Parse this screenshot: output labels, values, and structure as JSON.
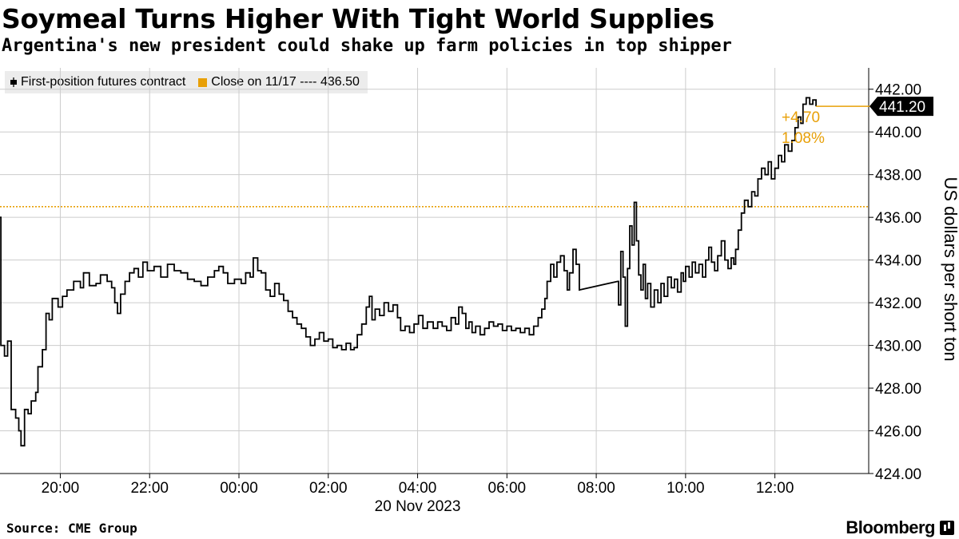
{
  "header": {
    "title": "Soymeal Turns Higher With Tight World Supplies",
    "subtitle": "Argentina's new president could shake up farm policies in top shipper"
  },
  "legend": {
    "series_label": "First-position futures contract",
    "close_label": "Close on 11/17 ---- 436.50"
  },
  "footer": {
    "source": "Source: CME Group",
    "brand": "Bloomberg"
  },
  "colors": {
    "series": "#000000",
    "close": "#e8a008",
    "gridline": "#cccccc",
    "axis": "#000000",
    "legend_bg": "#ececec"
  },
  "chart_data": {
    "type": "line",
    "ylabel": "US dollars per short ton",
    "date_label": "20 Nov 2023",
    "ylim": [
      424,
      443
    ],
    "xlim_hours": [
      -5.35,
      14.1
    ],
    "y_ticks": [
      "424.00",
      "426.00",
      "428.00",
      "430.00",
      "432.00",
      "434.00",
      "436.00",
      "438.00",
      "440.00",
      "442.00"
    ],
    "x_ticks": [
      {
        "label": "20:00",
        "t": -4
      },
      {
        "label": "22:00",
        "t": -2
      },
      {
        "label": "00:00",
        "t": 0
      },
      {
        "label": "02:00",
        "t": 2
      },
      {
        "label": "04:00",
        "t": 4
      },
      {
        "label": "06:00",
        "t": 6
      },
      {
        "label": "08:00",
        "t": 8
      },
      {
        "label": "10:00",
        "t": 10
      },
      {
        "label": "12:00",
        "t": 12
      }
    ],
    "reference_line": {
      "name": "Close on 11/17",
      "value": 436.5
    },
    "last_value": "441.20",
    "change_abs": "+4.70",
    "change_pct": "1.08%",
    "grid": true,
    "legend_position": "top-left",
    "series": [
      {
        "points": [
          [
            -5.35,
            436.0
          ],
          [
            -5.33,
            430.0
          ],
          [
            -5.25,
            429.5
          ],
          [
            -5.18,
            430.2
          ],
          [
            -5.1,
            427.0
          ],
          [
            -5.0,
            426.6
          ],
          [
            -4.93,
            426.0
          ],
          [
            -4.88,
            425.3
          ],
          [
            -4.8,
            427.0
          ],
          [
            -4.72,
            426.8
          ],
          [
            -4.65,
            427.4
          ],
          [
            -4.55,
            427.8
          ],
          [
            -4.5,
            429.0
          ],
          [
            -4.4,
            429.8
          ],
          [
            -4.32,
            431.5
          ],
          [
            -4.25,
            431.2
          ],
          [
            -4.18,
            432.2
          ],
          [
            -4.05,
            431.8
          ],
          [
            -3.95,
            432.3
          ],
          [
            -3.85,
            432.6
          ],
          [
            -3.7,
            433.0
          ],
          [
            -3.55,
            432.7
          ],
          [
            -3.48,
            433.4
          ],
          [
            -3.35,
            432.8
          ],
          [
            -3.2,
            432.9
          ],
          [
            -3.1,
            433.3
          ],
          [
            -2.95,
            433.0
          ],
          [
            -2.85,
            432.7
          ],
          [
            -2.78,
            432.0
          ],
          [
            -2.72,
            431.5
          ],
          [
            -2.65,
            432.4
          ],
          [
            -2.55,
            433.0
          ],
          [
            -2.45,
            433.4
          ],
          [
            -2.35,
            433.6
          ],
          [
            -2.25,
            433.2
          ],
          [
            -2.15,
            433.9
          ],
          [
            -2.05,
            433.5
          ],
          [
            -1.9,
            433.7
          ],
          [
            -1.75,
            433.2
          ],
          [
            -1.6,
            433.8
          ],
          [
            -1.45,
            433.5
          ],
          [
            -1.3,
            433.4
          ],
          [
            -1.15,
            433.1
          ],
          [
            -1.0,
            433.0
          ],
          [
            -0.85,
            432.8
          ],
          [
            -0.7,
            433.2
          ],
          [
            -0.55,
            433.5
          ],
          [
            -0.45,
            433.7
          ],
          [
            -0.35,
            433.4
          ],
          [
            -0.25,
            432.9
          ],
          [
            -0.1,
            433.1
          ],
          [
            0.05,
            432.9
          ],
          [
            0.15,
            433.4
          ],
          [
            0.25,
            433.2
          ],
          [
            0.32,
            434.1
          ],
          [
            0.42,
            433.5
          ],
          [
            0.5,
            433.4
          ],
          [
            0.6,
            432.6
          ],
          [
            0.7,
            432.3
          ],
          [
            0.8,
            432.9
          ],
          [
            0.9,
            432.4
          ],
          [
            1.0,
            432.1
          ],
          [
            1.1,
            431.6
          ],
          [
            1.2,
            431.3
          ],
          [
            1.3,
            431.0
          ],
          [
            1.4,
            430.8
          ],
          [
            1.5,
            430.4
          ],
          [
            1.6,
            430.0
          ],
          [
            1.7,
            430.3
          ],
          [
            1.8,
            430.6
          ],
          [
            1.9,
            430.2
          ],
          [
            2.0,
            430.3
          ],
          [
            2.1,
            429.9
          ],
          [
            2.2,
            430.0
          ],
          [
            2.3,
            429.8
          ],
          [
            2.4,
            430.1
          ],
          [
            2.5,
            429.8
          ],
          [
            2.58,
            429.9
          ],
          [
            2.65,
            430.5
          ],
          [
            2.75,
            431.0
          ],
          [
            2.85,
            431.8
          ],
          [
            2.92,
            432.3
          ],
          [
            2.98,
            431.2
          ],
          [
            3.05,
            431.7
          ],
          [
            3.15,
            431.4
          ],
          [
            3.25,
            432.0
          ],
          [
            3.35,
            431.6
          ],
          [
            3.45,
            431.9
          ],
          [
            3.55,
            431.3
          ],
          [
            3.62,
            430.7
          ],
          [
            3.72,
            430.9
          ],
          [
            3.82,
            430.6
          ],
          [
            3.92,
            431.0
          ],
          [
            4.02,
            431.4
          ],
          [
            4.12,
            430.8
          ],
          [
            4.22,
            431.1
          ],
          [
            4.35,
            430.8
          ],
          [
            4.45,
            431.1
          ],
          [
            4.55,
            430.9
          ],
          [
            4.65,
            430.7
          ],
          [
            4.75,
            431.3
          ],
          [
            4.85,
            431.0
          ],
          [
            4.92,
            431.8
          ],
          [
            5.0,
            431.5
          ],
          [
            5.08,
            430.8
          ],
          [
            5.15,
            431.1
          ],
          [
            5.22,
            430.6
          ],
          [
            5.3,
            430.9
          ],
          [
            5.4,
            430.5
          ],
          [
            5.5,
            430.8
          ],
          [
            5.6,
            431.1
          ],
          [
            5.7,
            430.9
          ],
          [
            5.8,
            431.0
          ],
          [
            5.9,
            430.7
          ],
          [
            6.0,
            430.9
          ],
          [
            6.1,
            430.7
          ],
          [
            6.2,
            430.8
          ],
          [
            6.3,
            430.6
          ],
          [
            6.4,
            430.8
          ],
          [
            6.5,
            430.5
          ],
          [
            6.6,
            430.9
          ],
          [
            6.7,
            431.3
          ],
          [
            6.78,
            431.7
          ],
          [
            6.85,
            432.2
          ],
          [
            6.9,
            433.0
          ],
          [
            6.98,
            433.8
          ],
          [
            7.05,
            433.2
          ],
          [
            7.12,
            433.9
          ],
          [
            7.2,
            434.2
          ],
          [
            7.28,
            433.5
          ],
          [
            7.35,
            432.6
          ],
          [
            7.4,
            433.4
          ],
          [
            7.48,
            434.5
          ],
          [
            7.55,
            433.8
          ],
          [
            7.62,
            432.6
          ],
          [
            8.48,
            433.0
          ],
          [
            8.5,
            431.9
          ],
          [
            8.55,
            434.4
          ],
          [
            8.6,
            433.2
          ],
          [
            8.65,
            430.9
          ],
          [
            8.7,
            433.6
          ],
          [
            8.75,
            435.6
          ],
          [
            8.8,
            434.7
          ],
          [
            8.85,
            436.7
          ],
          [
            8.9,
            434.9
          ],
          [
            8.95,
            433.3
          ],
          [
            9.0,
            432.6
          ],
          [
            9.05,
            433.8
          ],
          [
            9.1,
            432.2
          ],
          [
            9.15,
            432.9
          ],
          [
            9.22,
            431.8
          ],
          [
            9.3,
            432.6
          ],
          [
            9.38,
            432.0
          ],
          [
            9.45,
            432.9
          ],
          [
            9.52,
            432.3
          ],
          [
            9.6,
            433.2
          ],
          [
            9.68,
            432.7
          ],
          [
            9.75,
            433.1
          ],
          [
            9.82,
            432.5
          ],
          [
            9.9,
            433.4
          ],
          [
            9.95,
            433.0
          ],
          [
            10.0,
            433.7
          ],
          [
            10.08,
            433.2
          ],
          [
            10.15,
            433.9
          ],
          [
            10.22,
            433.4
          ],
          [
            10.3,
            433.8
          ],
          [
            10.38,
            433.2
          ],
          [
            10.45,
            434.0
          ],
          [
            10.52,
            434.6
          ],
          [
            10.58,
            433.9
          ],
          [
            10.65,
            433.5
          ],
          [
            10.72,
            434.2
          ],
          [
            10.8,
            434.9
          ],
          [
            10.88,
            434.0
          ],
          [
            10.95,
            433.6
          ],
          [
            11.02,
            434.1
          ],
          [
            11.08,
            433.8
          ],
          [
            11.12,
            434.5
          ],
          [
            11.18,
            435.4
          ],
          [
            11.25,
            436.2
          ],
          [
            11.32,
            436.8
          ],
          [
            11.4,
            436.5
          ],
          [
            11.48,
            437.2
          ],
          [
            11.55,
            437.0
          ],
          [
            11.62,
            437.8
          ],
          [
            11.7,
            438.3
          ],
          [
            11.78,
            438.0
          ],
          [
            11.85,
            438.6
          ],
          [
            11.92,
            437.8
          ],
          [
            12.0,
            438.3
          ],
          [
            12.08,
            438.9
          ],
          [
            12.15,
            438.6
          ],
          [
            12.22,
            439.4
          ],
          [
            12.3,
            439.1
          ],
          [
            12.38,
            439.6
          ],
          [
            12.45,
            440.2
          ],
          [
            12.52,
            440.7
          ],
          [
            12.58,
            440.4
          ],
          [
            12.63,
            441.3
          ],
          [
            12.7,
            441.6
          ],
          [
            12.78,
            441.3
          ],
          [
            12.85,
            441.5
          ],
          [
            12.92,
            441.2
          ]
        ]
      }
    ]
  }
}
